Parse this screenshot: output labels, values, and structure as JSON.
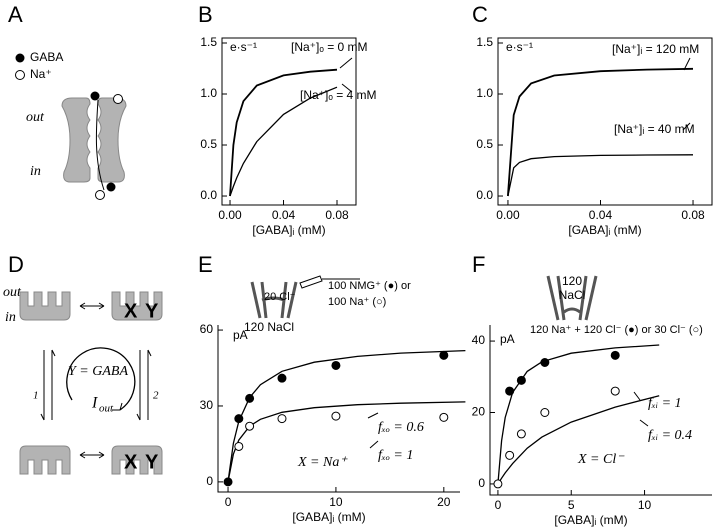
{
  "panel_a": {
    "label": "A",
    "legend_gaba": "GABA",
    "legend_na": "Na⁺",
    "side_out": "out",
    "side_in": "in"
  },
  "panel_d": {
    "label": "D",
    "side_out": "out",
    "side_in": "in",
    "x_top": "X",
    "y_top": "Y",
    "x_bottom": "X",
    "y_bottom": "Y",
    "equation": "Y = GABA",
    "current": "I",
    "current_sub": "out",
    "step_1": "1",
    "step_2": "2"
  },
  "chart_data": [
    {
      "type": "line",
      "panel": "B",
      "xlabel": "[GABA]ᵢ (mM)",
      "frame": true,
      "xlim": [
        -0.006,
        0.0942
      ],
      "ylim": [
        -0.088,
        1.549
      ],
      "xticks": [
        {
          "value": 0,
          "label": "0.00"
        },
        {
          "value": 0.04,
          "label": "0.04"
        },
        {
          "value": 0.08,
          "label": "0.08"
        }
      ],
      "yticks": [
        {
          "value": 0,
          "label": "0.0"
        },
        {
          "value": 0.5,
          "label": "0.5"
        },
        {
          "value": 1,
          "label": "1.0"
        },
        {
          "value": 1.5,
          "label": "1.5"
        }
      ],
      "annotations": [
        "e·s⁻¹",
        "[Na⁺]ₒ = 0 mM",
        "[Na⁺]ₒ = 4 mM"
      ],
      "series": [
        {
          "style": "line",
          "color": "#000000",
          "x": [
            0,
            0.0025,
            0.005,
            0.01,
            0.02,
            0.04,
            0.06,
            0.08
          ],
          "values": [
            0,
            0.5,
            0.722,
            0.929,
            1.083,
            1.182,
            1.219,
            1.238
          ]
        },
        {
          "style": "line",
          "color": "#000000",
          "x": [
            0,
            0.0025,
            0.005,
            0.01,
            0.02,
            0.04,
            0.06,
            0.08
          ],
          "values": [
            0,
            0.094,
            0.178,
            0.32,
            0.533,
            0.8,
            0.96,
            1.067
          ]
        }
      ]
    },
    {
      "type": "line",
      "panel": "C",
      "xlabel": "[GABA]ᵢ (mM)",
      "frame": true,
      "xlim": [
        -0.0043,
        0.0882
      ],
      "ylim": [
        -0.088,
        1.549
      ],
      "xticks": [
        {
          "value": 0,
          "label": "0.00"
        },
        {
          "value": 0.04,
          "label": "0.04"
        },
        {
          "value": 0.08,
          "label": "0.08"
        }
      ],
      "yticks": [
        {
          "value": 0,
          "label": "0.0"
        },
        {
          "value": 0.5,
          "label": "0.5"
        },
        {
          "value": 1,
          "label": "1.0"
        },
        {
          "value": 1.5,
          "label": "1.5"
        }
      ],
      "annotations": [
        "e·s⁻¹",
        "[Na⁺]ᵢ = 120 mM",
        "[Na⁺]ᵢ = 40 mM"
      ],
      "series": [
        {
          "style": "line",
          "color": "#000000",
          "x": [
            0,
            0.0025,
            0.005,
            0.01,
            0.02,
            0.04,
            0.06,
            0.08
          ],
          "values": [
            0,
            0.794,
            0.976,
            1.104,
            1.181,
            1.224,
            1.239,
            1.247
          ]
        },
        {
          "style": "line",
          "color": "#000000",
          "x": [
            0,
            0.0025,
            0.005,
            0.01,
            0.02,
            0.04,
            0.06,
            0.08
          ],
          "values": [
            0,
            0.277,
            0.33,
            0.366,
            0.386,
            0.398,
            0.402,
            0.404
          ]
        }
      ]
    },
    {
      "type": "line",
      "panel": "E",
      "xlabel": "[GABA]ᵢ (mM)",
      "frame": false,
      "xlim": [
        -0.93,
        21.5
      ],
      "ylim": [
        -4,
        62
      ],
      "xticks": [
        0,
        10,
        20
      ],
      "yticks": [
        0,
        30,
        60
      ],
      "annotations": [
        "pA",
        "20 Cl⁻",
        "120 NaCl",
        "100 NMG⁺ (●) or",
        "100 Na⁺ (○)",
        "fₓₒ = 0.6",
        "fₓₒ = 1",
        "X = Na⁺"
      ],
      "series": [
        {
          "style": "line",
          "color": "#000000",
          "x": [
            0,
            0.5,
            1,
            2,
            3,
            5,
            8,
            12,
            16,
            22
          ],
          "values": [
            0,
            15.3,
            23.9,
            33.3,
            38.4,
            43.7,
            47.3,
            49.6,
            50.9,
            51.9
          ]
        },
        {
          "style": "line",
          "color": "#000000",
          "x": [
            0,
            0.5,
            1,
            2,
            3,
            5,
            8,
            12,
            16,
            22
          ],
          "values": [
            0,
            11,
            16.5,
            22,
            24.75,
            27.5,
            29.3,
            30.5,
            31.1,
            31.6
          ]
        },
        {
          "style": "points",
          "marker": "filled",
          "color": "#000000",
          "x": [
            0,
            1,
            2,
            5,
            10,
            20
          ],
          "values": [
            0,
            25,
            33,
            41,
            46,
            50
          ]
        },
        {
          "style": "points",
          "marker": "open",
          "color": "#000000",
          "x": [
            1,
            2,
            5,
            10,
            20
          ],
          "values": [
            14,
            22,
            25,
            26,
            25.5
          ]
        }
      ]
    },
    {
      "type": "line",
      "panel": "F",
      "xlabel": "[GABA]ᵢ (mM)",
      "frame": false,
      "xlim": [
        -0.54,
        14.6
      ],
      "ylim": [
        -3.1,
        44.5
      ],
      "xticks": [
        0,
        5,
        10
      ],
      "yticks": [
        0,
        20,
        40
      ],
      "annotations": [
        "pA",
        "120",
        "NaCl",
        "120 Na⁺ + 120 Cl⁻ (●) or 30 Cl⁻ (○)",
        "fₓᵢ = 1",
        "fₓᵢ = 0.4",
        "X = Cl⁻"
      ],
      "series": [
        {
          "style": "line",
          "color": "#000000",
          "x": [
            0,
            0.25,
            0.5,
            1,
            2,
            3,
            5,
            8,
            11
          ],
          "values": [
            0,
            12.1,
            18.6,
            25.6,
            31.5,
            34.2,
            36.6,
            38.1,
            38.9
          ]
        },
        {
          "style": "line",
          "color": "#000000",
          "x": [
            0,
            0.25,
            0.5,
            1,
            2,
            3,
            5,
            8,
            11
          ],
          "values": [
            0,
            1.6,
            3.1,
            5.7,
            10,
            13.1,
            17.3,
            21.5,
            24.7
          ]
        },
        {
          "style": "points",
          "marker": "filled",
          "color": "#000000",
          "x": [
            0.8,
            1.6,
            3.2,
            8
          ],
          "values": [
            26,
            29,
            34,
            36
          ]
        },
        {
          "style": "points",
          "marker": "open",
          "color": "#000000",
          "x": [
            0,
            0.8,
            1.6,
            3.2,
            8
          ],
          "values": [
            0,
            8,
            14,
            20,
            26
          ]
        }
      ]
    }
  ]
}
